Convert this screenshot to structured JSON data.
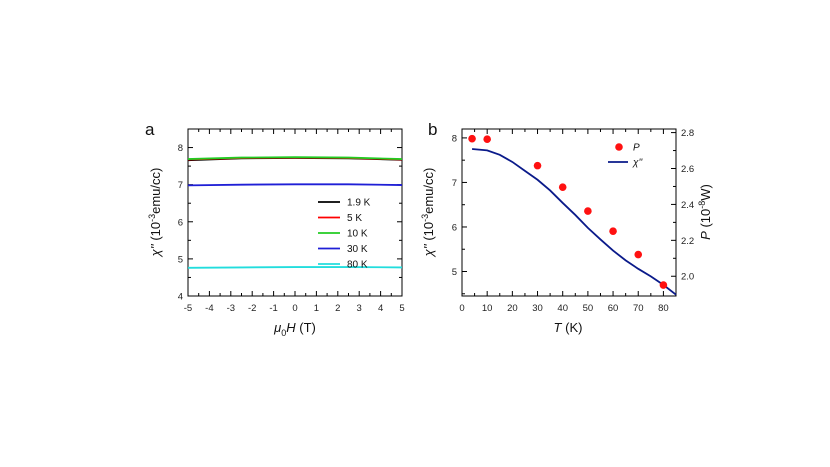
{
  "chart_data": [
    {
      "type": "line",
      "panel_label": "a",
      "xlabel": "μ0H (T)",
      "xlabel_parts": {
        "sym": "μ",
        "sub": "0",
        "var": "H",
        "unit": " (T)"
      },
      "ylabel": "χ'' (10⁻³emu/cc)",
      "ylabel_parts": {
        "sym": "χ''",
        "pre": " (10",
        "exp": "-3",
        "post": "emu/cc)"
      },
      "xlim": [
        -5,
        5
      ],
      "ylim": [
        4,
        8.5
      ],
      "xticks": [
        "-5",
        "-4",
        "-3",
        "-2",
        "-1",
        "0",
        "1",
        "2",
        "3",
        "4",
        "5"
      ],
      "yticks": [
        "4",
        "5",
        "6",
        "7",
        "8"
      ],
      "legend_position": "center-right",
      "series": [
        {
          "name": "1.9 K",
          "color": "#000000",
          "x": [
            -5,
            -2.5,
            0,
            2.5,
            5
          ],
          "values": [
            7.66,
            7.71,
            7.72,
            7.71,
            7.67
          ]
        },
        {
          "name": "5 K",
          "color": "#ff0000",
          "x": [
            -5,
            -2.5,
            0,
            2.5,
            5
          ],
          "values": [
            7.68,
            7.72,
            7.73,
            7.72,
            7.68
          ]
        },
        {
          "name": "10 K",
          "color": "#22cc22",
          "x": [
            -5,
            -2.5,
            0,
            2.5,
            5
          ],
          "values": [
            7.69,
            7.73,
            7.74,
            7.73,
            7.69
          ]
        },
        {
          "name": "30 K",
          "color": "#1f1fd6",
          "x": [
            -5,
            -2.5,
            0,
            2.5,
            5
          ],
          "values": [
            6.98,
            7.0,
            7.01,
            7.01,
            6.99
          ]
        },
        {
          "name": "80 K",
          "color": "#22dddd",
          "x": [
            -5,
            -2.5,
            0,
            2.5,
            5
          ],
          "values": [
            4.76,
            4.77,
            4.78,
            4.78,
            4.77
          ]
        }
      ]
    },
    {
      "type": "line+scatter",
      "panel_label": "b",
      "xlabel": "T (K)",
      "xlabel_parts": {
        "var": "T",
        "unit": " (K)"
      },
      "ylabel": "χ'' (10⁻³emu/cc)",
      "ylabel_parts": {
        "sym": "χ''",
        "pre": " (10",
        "exp": "-3",
        "post": "emu/cc)"
      },
      "y2label": "P (10⁻⁸W)",
      "y2label_parts": {
        "var": "P",
        "pre": " (10",
        "exp": "-8",
        "post": "W)"
      },
      "xlim": [
        0,
        85
      ],
      "ylim": [
        4.45,
        8.2
      ],
      "y2lim": [
        1.89,
        2.82
      ],
      "xticks": [
        "0",
        "10",
        "20",
        "30",
        "40",
        "50",
        "60",
        "70",
        "80"
      ],
      "yticks": [
        "5",
        "6",
        "7",
        "8"
      ],
      "y2ticks": [
        "2.0",
        "2.2",
        "2.4",
        "2.6",
        "2.8"
      ],
      "legend_position": "top-right",
      "series": [
        {
          "name": "P",
          "kind": "scatter",
          "axis": "right",
          "color": "#ff1111",
          "x": [
            4,
            10,
            30,
            40,
            50,
            60,
            70,
            80
          ],
          "values": [
            2.766,
            2.763,
            2.616,
            2.496,
            2.363,
            2.251,
            2.121,
            1.951
          ]
        },
        {
          "name": "χ''",
          "kind": "line",
          "axis": "left",
          "color": "#0a1a8a",
          "x": [
            4,
            10,
            15,
            20,
            25,
            30,
            35,
            40,
            45,
            50,
            55,
            60,
            65,
            70,
            75,
            80,
            85
          ],
          "values": [
            7.75,
            7.72,
            7.62,
            7.46,
            7.26,
            7.06,
            6.82,
            6.54,
            6.27,
            5.98,
            5.72,
            5.47,
            5.25,
            5.06,
            4.89,
            4.7,
            4.48
          ]
        }
      ]
    }
  ]
}
